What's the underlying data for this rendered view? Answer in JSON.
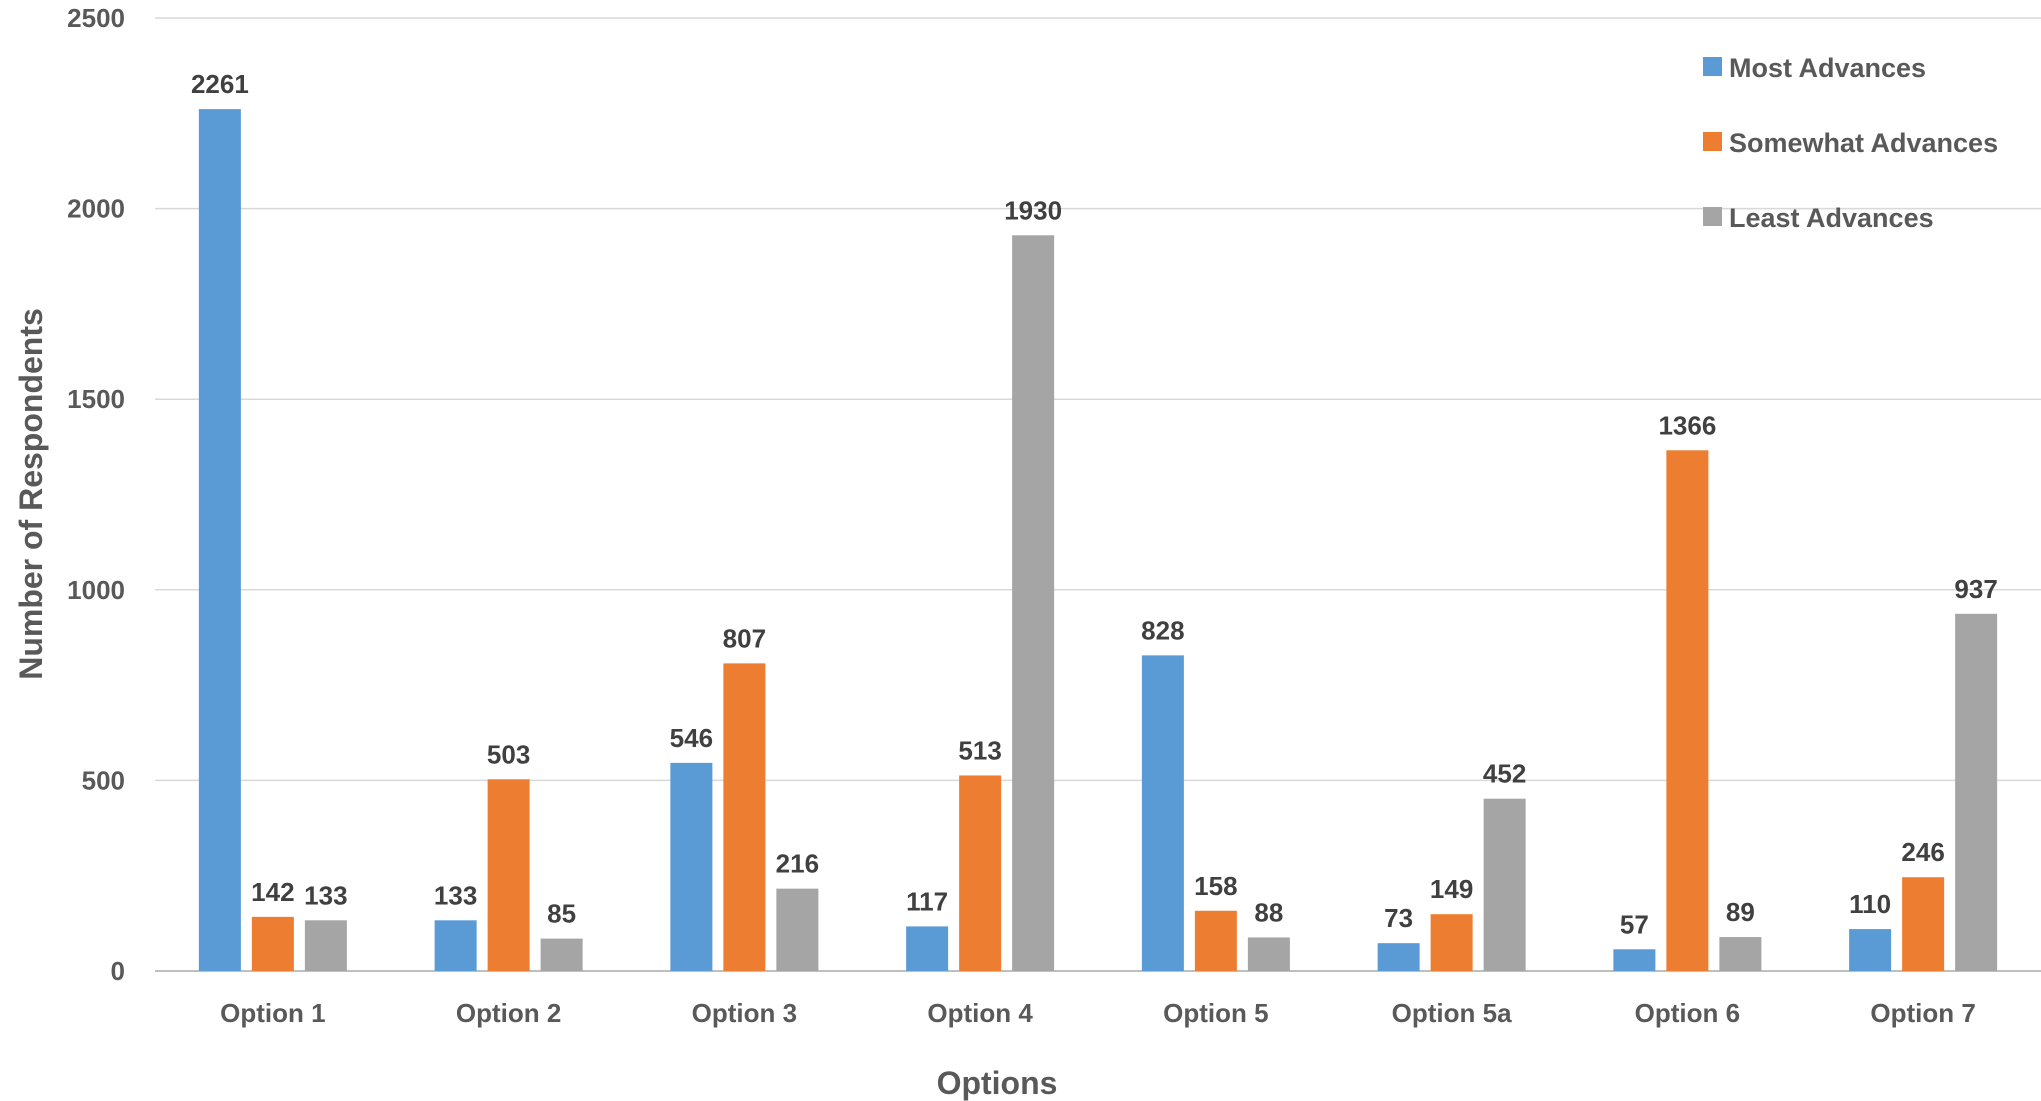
{
  "chart_data": {
    "type": "bar",
    "title": "",
    "xlabel": "Options",
    "ylabel": "Number of Respondents",
    "ylim": [
      0,
      2500
    ],
    "yticks": [
      0,
      500,
      1000,
      1500,
      2000,
      2500
    ],
    "grid": true,
    "legend_position": "top-right",
    "categories": [
      "Option 1",
      "Option 2",
      "Option 3",
      "Option 4",
      "Option 5",
      "Option 5a",
      "Option 6",
      "Option 7"
    ],
    "series": [
      {
        "name": "Most Advances",
        "color": "#5B9BD5",
        "values": [
          2261,
          133,
          546,
          117,
          828,
          73,
          57,
          110
        ]
      },
      {
        "name": "Somewhat Advances",
        "color": "#ED7D31",
        "values": [
          142,
          503,
          807,
          513,
          158,
          149,
          1366,
          246
        ]
      },
      {
        "name": "Least Advances",
        "color": "#A5A5A5",
        "values": [
          133,
          85,
          216,
          1930,
          88,
          452,
          89,
          937
        ]
      }
    ]
  }
}
